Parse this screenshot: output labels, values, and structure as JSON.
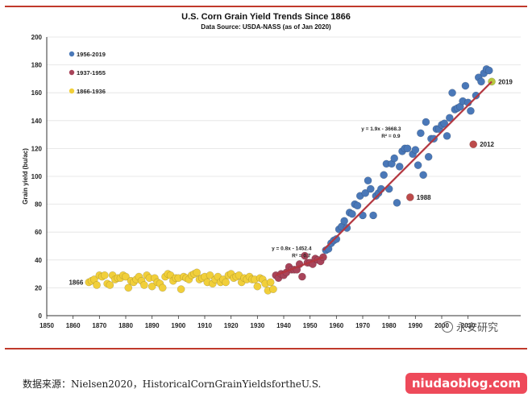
{
  "chart_data": {
    "type": "scatter",
    "title": "U.S. Corn Grain Yield Trends Since 1866",
    "subtitle": "Data Source: USDA-NASS (as of Jan 2020)",
    "xlabel": "",
    "ylabel": "Grain yield (bu/ac)",
    "xlim": [
      1850,
      2030
    ],
    "ylim": [
      0,
      200
    ],
    "x_ticks": [
      1850,
      1860,
      1870,
      1880,
      1890,
      1900,
      1910,
      1920,
      1930,
      1940,
      1950,
      1960,
      1970,
      1980,
      1990,
      2000,
      2010
    ],
    "y_ticks": [
      0,
      20,
      40,
      60,
      80,
      100,
      120,
      140,
      160,
      180,
      200
    ],
    "grid": true,
    "legend_position": "top-left",
    "series": [
      {
        "name": "1956-2019",
        "color": "#4a78b8",
        "x": [
          1956,
          1957,
          1958,
          1959,
          1960,
          1961,
          1962,
          1963,
          1964,
          1965,
          1966,
          1967,
          1968,
          1969,
          1970,
          1971,
          1972,
          1973,
          1974,
          1975,
          1976,
          1977,
          1978,
          1979,
          1980,
          1981,
          1982,
          1983,
          1984,
          1985,
          1986,
          1987,
          1989,
          1990,
          1991,
          1992,
          1993,
          1994,
          1995,
          1996,
          1997,
          1998,
          1999,
          2000,
          2001,
          2002,
          2003,
          2004,
          2005,
          2006,
          2007,
          2008,
          2009,
          2010,
          2011,
          2013,
          2014,
          2015,
          2016,
          2017,
          2018
        ],
        "y": [
          47,
          48,
          52,
          54,
          55,
          62,
          64,
          68,
          63,
          74,
          73,
          80,
          79,
          86,
          72,
          88,
          97,
          91,
          72,
          86,
          88,
          91,
          101,
          109,
          91,
          109,
          113,
          81,
          107,
          118,
          120,
          120,
          116,
          119,
          108,
          131,
          101,
          139,
          114,
          127,
          127,
          134,
          134,
          137,
          138,
          129,
          142,
          160,
          148,
          149,
          150,
          154,
          165,
          153,
          147,
          158,
          171,
          168,
          174,
          177,
          176
        ]
      },
      {
        "name": "1937-1955",
        "color": "#a8445a",
        "x": [
          1937,
          1938,
          1939,
          1940,
          1941,
          1942,
          1943,
          1944,
          1945,
          1946,
          1947,
          1948,
          1949,
          1950,
          1951,
          1952,
          1953,
          1954,
          1955
        ],
        "y": [
          29,
          27,
          30,
          29,
          31,
          35,
          33,
          33,
          33,
          37,
          28,
          43,
          38,
          38,
          37,
          41,
          40,
          39,
          42
        ]
      },
      {
        "name": "1866-1936",
        "color": "#f1cf3a",
        "x": [
          1866,
          1867,
          1868,
          1869,
          1870,
          1871,
          1872,
          1873,
          1874,
          1875,
          1876,
          1877,
          1878,
          1879,
          1880,
          1881,
          1882,
          1883,
          1884,
          1885,
          1886,
          1887,
          1888,
          1889,
          1890,
          1891,
          1892,
          1893,
          1894,
          1895,
          1896,
          1897,
          1898,
          1899,
          1900,
          1901,
          1902,
          1903,
          1904,
          1905,
          1906,
          1907,
          1908,
          1909,
          1910,
          1911,
          1912,
          1913,
          1914,
          1915,
          1916,
          1917,
          1918,
          1919,
          1920,
          1921,
          1922,
          1923,
          1924,
          1925,
          1926,
          1927,
          1928,
          1929,
          1930,
          1931,
          1932,
          1933,
          1934,
          1935,
          1936
        ],
        "y": [
          24,
          25,
          26,
          22,
          29,
          28,
          29,
          23,
          22,
          29,
          26,
          27,
          27,
          29,
          28,
          20,
          25,
          24,
          26,
          28,
          25,
          22,
          29,
          27,
          21,
          27,
          24,
          23,
          20,
          28,
          30,
          29,
          25,
          27,
          27,
          19,
          28,
          27,
          26,
          29,
          30,
          31,
          26,
          27,
          28,
          24,
          29,
          23,
          26,
          28,
          24,
          26,
          24,
          29,
          30,
          27,
          28,
          29,
          24,
          27,
          26,
          28,
          26,
          26,
          21,
          27,
          26,
          23,
          18,
          24,
          19
        ]
      },
      {
        "name": "",
        "color": "#bc4a4a",
        "x": [
          1988,
          2012
        ],
        "y": [
          85,
          123
        ]
      },
      {
        "name": "",
        "color": "#b8c840",
        "x": [
          2019
        ],
        "y": [
          168
        ]
      }
    ],
    "trendlines": [
      {
        "x": [
          1937,
          1955
        ],
        "y": [
          29,
          42
        ]
      },
      {
        "x": [
          1955,
          2019
        ],
        "y": [
          47,
          168
        ]
      }
    ],
    "annotations": [
      {
        "text": "1866",
        "x": 1866,
        "y": 24
      },
      {
        "text": "1988",
        "x": 1988,
        "y": 85
      },
      {
        "text": "2012",
        "x": 2012,
        "y": 123
      },
      {
        "text": "2019",
        "x": 2019,
        "y": 168
      },
      {
        "text_lines": [
          "y = 0.8x - 1452.4",
          "R² = 0.7"
        ],
        "x": 1943,
        "y": 47
      },
      {
        "text_lines": [
          "y = 1.9x - 3668.3",
          "R² = 0.9"
        ],
        "x": 1977,
        "y": 133
      }
    ]
  },
  "watermark_chart": "永安研究",
  "source_text": "数据来源：Nielsen2020，HistoricalCornGrainYieldsfortheU.S.",
  "watermark_site": "niudaoblog.com"
}
